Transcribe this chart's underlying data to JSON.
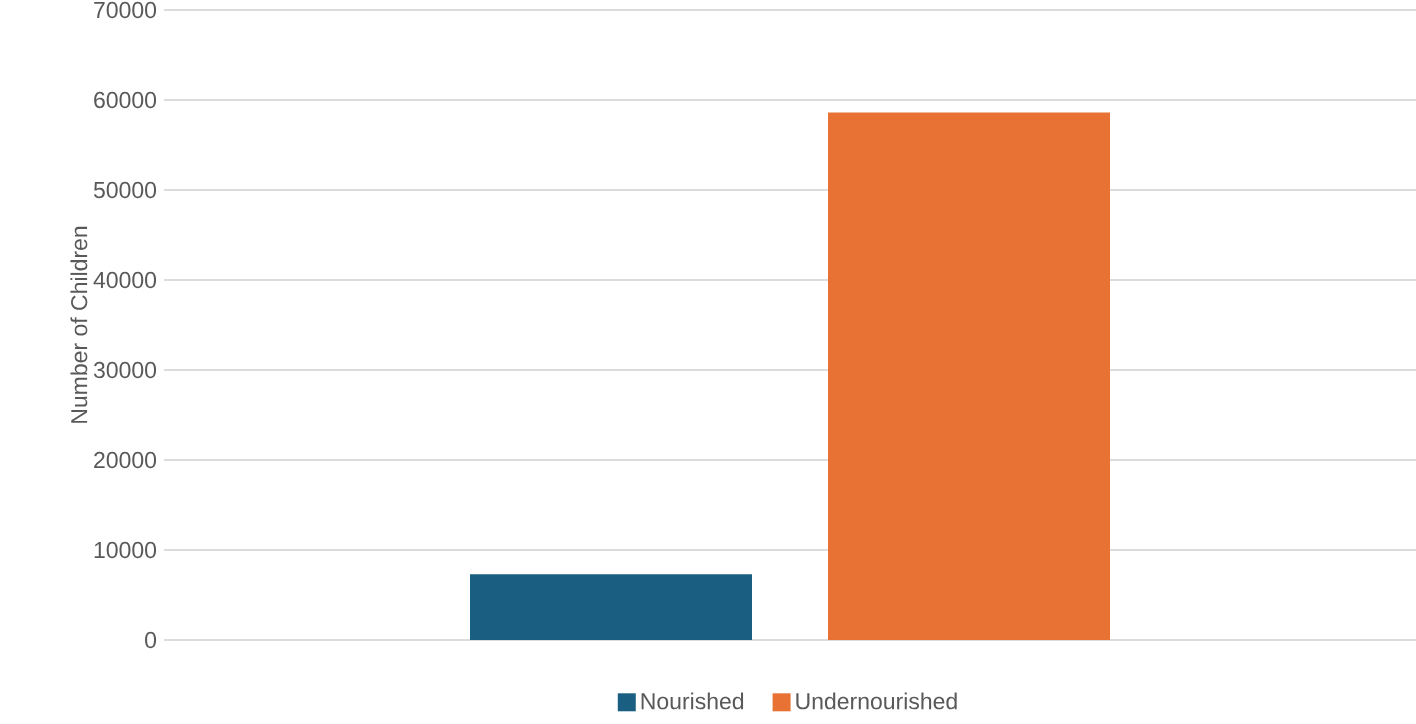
{
  "chart_data": {
    "type": "bar",
    "ylabel": "Number of Children",
    "categories": [
      null
    ],
    "series": [
      {
        "name": "Nourished",
        "color": "#1a5f82",
        "values": [
          7300
        ]
      },
      {
        "name": "Undernourished",
        "color": "#e87234",
        "values": [
          58600
        ]
      }
    ],
    "ylim": [
      0,
      70000
    ],
    "yticks": [
      0,
      10000,
      20000,
      30000,
      40000,
      50000,
      60000,
      70000
    ],
    "grid": "y",
    "legend": "bottom"
  }
}
